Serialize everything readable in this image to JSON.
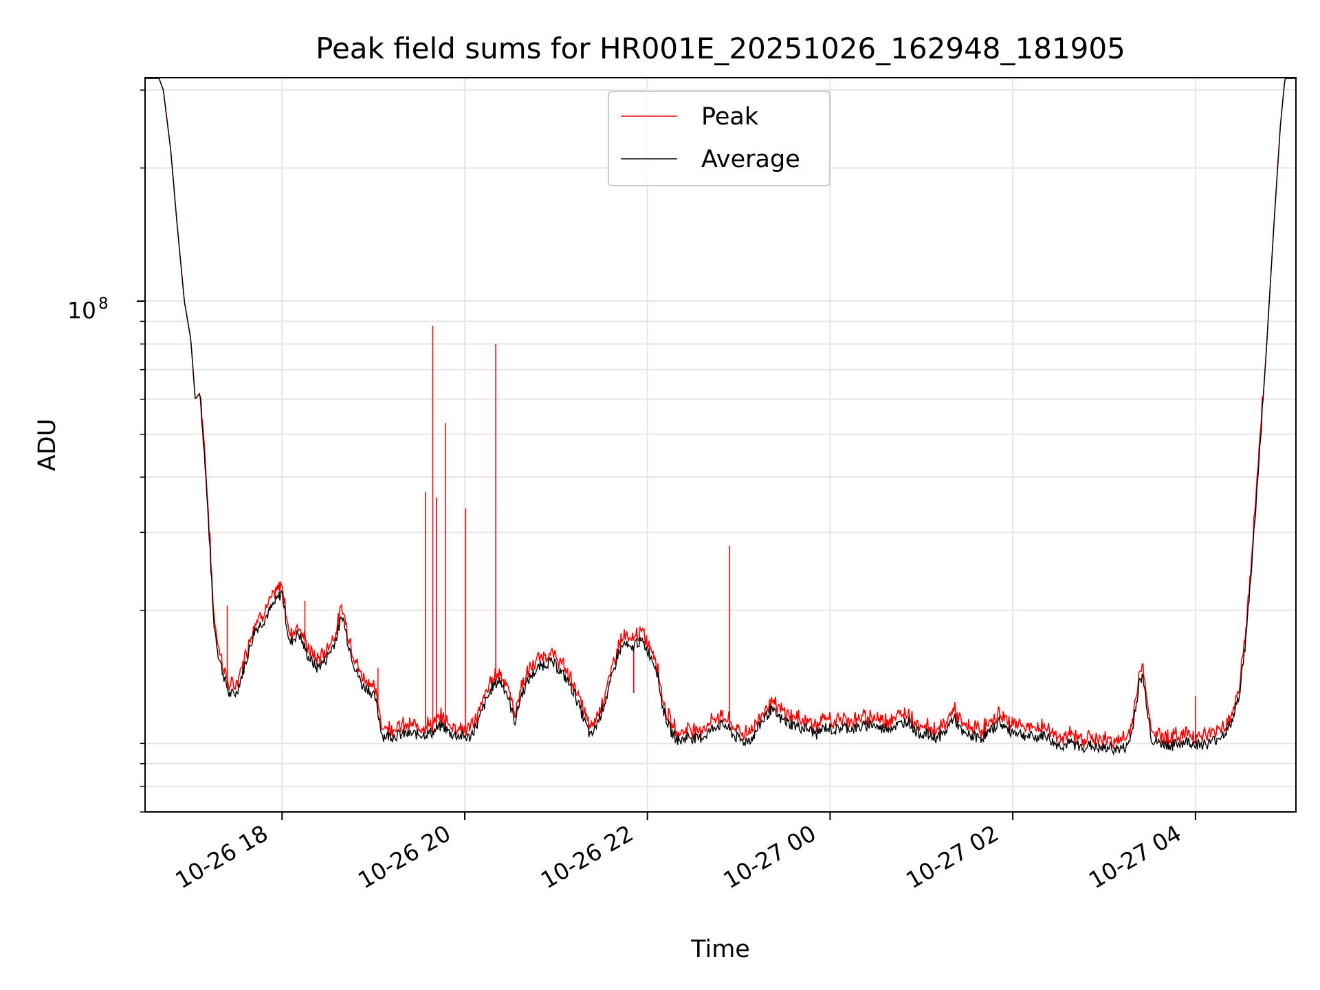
{
  "chart_data": {
    "type": "line",
    "title": "Peak field sums for HR001E_20251026_162948_181905",
    "xlabel": "Time",
    "ylabel": "ADU",
    "y_scale": "log",
    "ylim": [
      7000000,
      320000000
    ],
    "xlim_hours_from_2025_10_26_00": [
      16.5,
      29.1
    ],
    "grid": true,
    "legend_location": "upper center",
    "y_major_tick_label": "10",
    "y_major_tick_exponent": "8",
    "y_major_tick_value": 100000000,
    "x_tick_labels": [
      {
        "hour": 18,
        "label": "10-26 18"
      },
      {
        "hour": 20,
        "label": "10-26 20"
      },
      {
        "hour": 22,
        "label": "10-26 22"
      },
      {
        "hour": 24,
        "label": "10-27 00"
      },
      {
        "hour": 26,
        "label": "10-27 02"
      },
      {
        "hour": 28,
        "label": "10-27 04"
      }
    ],
    "series": [
      {
        "name": "Peak",
        "color": "#ff0000",
        "note": "closely tracks Average, slightly above, with sharp spikes",
        "spikes": [
          {
            "hour": 19.57,
            "value": 37000000
          },
          {
            "hour": 19.65,
            "value": 88000000
          },
          {
            "hour": 19.69,
            "value": 36000000
          },
          {
            "hour": 19.79,
            "value": 53000000
          },
          {
            "hour": 20.01,
            "value": 34000000
          },
          {
            "hour": 20.34,
            "value": 80000000
          },
          {
            "hour": 22.9,
            "value": 28000000
          },
          {
            "hour": 19.05,
            "value": 14800000
          },
          {
            "hour": 21.85,
            "value": 13000000
          },
          {
            "hour": 28.0,
            "value": 12800000
          },
          {
            "hour": 18.25,
            "value": 21000000
          },
          {
            "hour": 17.4,
            "value": 20500000
          }
        ]
      },
      {
        "name": "Average",
        "color": "#000000",
        "points": [
          [
            16.5,
            320000000
          ],
          [
            16.65,
            320000000
          ],
          [
            16.7,
            300000000
          ],
          [
            16.78,
            220000000
          ],
          [
            16.85,
            150000000
          ],
          [
            16.93,
            100000000
          ],
          [
            17.0,
            82000000
          ],
          [
            17.05,
            60000000
          ],
          [
            17.1,
            62000000
          ],
          [
            17.15,
            45000000
          ],
          [
            17.2,
            30000000
          ],
          [
            17.25,
            19000000
          ],
          [
            17.3,
            16000000
          ],
          [
            17.35,
            14500000
          ],
          [
            17.42,
            12900000
          ],
          [
            17.5,
            13000000
          ],
          [
            17.6,
            15200000
          ],
          [
            17.7,
            18000000
          ],
          [
            17.8,
            19000000
          ],
          [
            17.9,
            20500000
          ],
          [
            18.0,
            22000000
          ],
          [
            18.08,
            16800000
          ],
          [
            18.18,
            17800000
          ],
          [
            18.28,
            15800000
          ],
          [
            18.38,
            14800000
          ],
          [
            18.48,
            15500000
          ],
          [
            18.58,
            17000000
          ],
          [
            18.66,
            19500000
          ],
          [
            18.72,
            17000000
          ],
          [
            18.8,
            14800000
          ],
          [
            18.88,
            13500000
          ],
          [
            18.95,
            13300000
          ],
          [
            19.02,
            12600000
          ],
          [
            19.1,
            10400000
          ],
          [
            19.2,
            10400000
          ],
          [
            19.35,
            10500000
          ],
          [
            19.55,
            10500000
          ],
          [
            19.65,
            10600000
          ],
          [
            19.75,
            11000000
          ],
          [
            19.85,
            10500000
          ],
          [
            19.95,
            10400000
          ],
          [
            20.05,
            10300000
          ],
          [
            20.15,
            11200000
          ],
          [
            20.2,
            12000000
          ],
          [
            20.3,
            13400000
          ],
          [
            20.38,
            13900000
          ],
          [
            20.45,
            13200000
          ],
          [
            20.55,
            11200000
          ],
          [
            20.62,
            12900000
          ],
          [
            20.72,
            14200000
          ],
          [
            20.82,
            14900000
          ],
          [
            20.92,
            15300000
          ],
          [
            21.0,
            15000000
          ],
          [
            21.1,
            14100000
          ],
          [
            21.2,
            13000000
          ],
          [
            21.28,
            11700000
          ],
          [
            21.38,
            10300000
          ],
          [
            21.48,
            11500000
          ],
          [
            21.58,
            13300000
          ],
          [
            21.68,
            16000000
          ],
          [
            21.75,
            16800000
          ],
          [
            21.82,
            16200000
          ],
          [
            21.88,
            17000000
          ],
          [
            21.95,
            16900000
          ],
          [
            22.02,
            16000000
          ],
          [
            22.1,
            14800000
          ],
          [
            22.17,
            12000000
          ],
          [
            22.25,
            10700000
          ],
          [
            22.35,
            10100000
          ],
          [
            22.45,
            10400000
          ],
          [
            22.55,
            10200000
          ],
          [
            22.65,
            10500000
          ],
          [
            22.75,
            11000000
          ],
          [
            22.85,
            11000000
          ],
          [
            22.95,
            10400000
          ],
          [
            23.05,
            10100000
          ],
          [
            23.15,
            10300000
          ],
          [
            23.25,
            11200000
          ],
          [
            23.35,
            11900000
          ],
          [
            23.45,
            11400000
          ],
          [
            23.55,
            11100000
          ],
          [
            23.65,
            10900000
          ],
          [
            23.75,
            10800000
          ],
          [
            23.85,
            10500000
          ],
          [
            23.95,
            10900000
          ],
          [
            24.05,
            10700000
          ],
          [
            24.15,
            10900000
          ],
          [
            24.25,
            10800000
          ],
          [
            24.35,
            10900000
          ],
          [
            24.45,
            11100000
          ],
          [
            24.55,
            10800000
          ],
          [
            24.65,
            10900000
          ],
          [
            24.75,
            11000000
          ],
          [
            24.85,
            11300000
          ],
          [
            24.95,
            10600000
          ],
          [
            25.05,
            10500000
          ],
          [
            25.15,
            10300000
          ],
          [
            25.25,
            10500000
          ],
          [
            25.35,
            11500000
          ],
          [
            25.45,
            10500000
          ],
          [
            25.55,
            10400000
          ],
          [
            25.65,
            10300000
          ],
          [
            25.75,
            10600000
          ],
          [
            25.85,
            11200000
          ],
          [
            25.95,
            10700000
          ],
          [
            26.05,
            10600000
          ],
          [
            26.15,
            10400000
          ],
          [
            26.25,
            10300000
          ],
          [
            26.35,
            10500000
          ],
          [
            26.45,
            10000000
          ],
          [
            26.55,
            9900000
          ],
          [
            26.65,
            10000000
          ],
          [
            26.75,
            9800000
          ],
          [
            26.85,
            9900000
          ],
          [
            26.95,
            9700000
          ],
          [
            27.05,
            9800000
          ],
          [
            27.15,
            9700000
          ],
          [
            27.25,
            9800000
          ],
          [
            27.3,
            10500000
          ],
          [
            27.38,
            13500000
          ],
          [
            27.42,
            14300000
          ],
          [
            27.46,
            12500000
          ],
          [
            27.52,
            10200000
          ],
          [
            27.6,
            10000000
          ],
          [
            27.75,
            9900000
          ],
          [
            27.9,
            10100000
          ],
          [
            28.05,
            9950000
          ],
          [
            28.15,
            10000000
          ],
          [
            28.25,
            10300000
          ],
          [
            28.35,
            10700000
          ],
          [
            28.42,
            11500000
          ],
          [
            28.48,
            13000000
          ],
          [
            28.55,
            17000000
          ],
          [
            28.62,
            26000000
          ],
          [
            28.7,
            45000000
          ],
          [
            28.78,
            80000000
          ],
          [
            28.86,
            150000000
          ],
          [
            28.93,
            250000000
          ],
          [
            28.98,
            320000000
          ],
          [
            29.1,
            320000000
          ]
        ]
      }
    ]
  }
}
